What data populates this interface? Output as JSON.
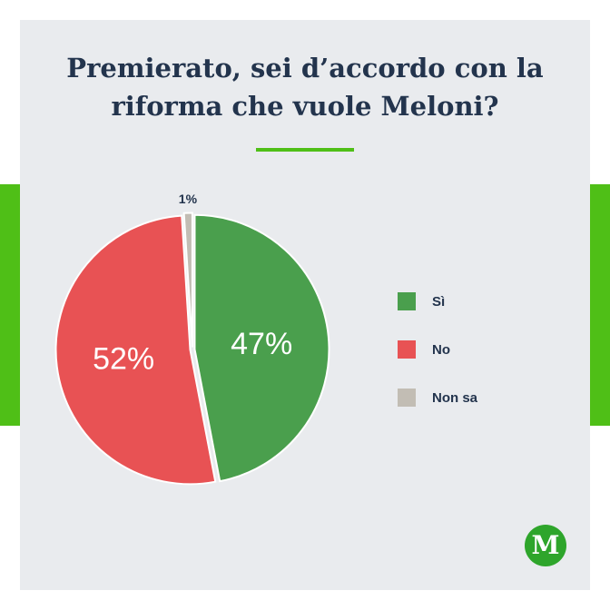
{
  "chart_data": {
    "type": "pie",
    "title": "Premierato, sei d’accordo con la riforma che vuole Meloni?",
    "categories": [
      "Sì",
      "No",
      "Non sa"
    ],
    "values": [
      47,
      52,
      1
    ],
    "labels": [
      "47%",
      "52%",
      "1%"
    ],
    "colors": [
      "#4a9f4d",
      "#e85254",
      "#c2bdb4"
    ],
    "legend_position": "right"
  },
  "logo": {
    "letter": "M",
    "color": "#2ea52b"
  },
  "accent_color": "#4fbf17"
}
